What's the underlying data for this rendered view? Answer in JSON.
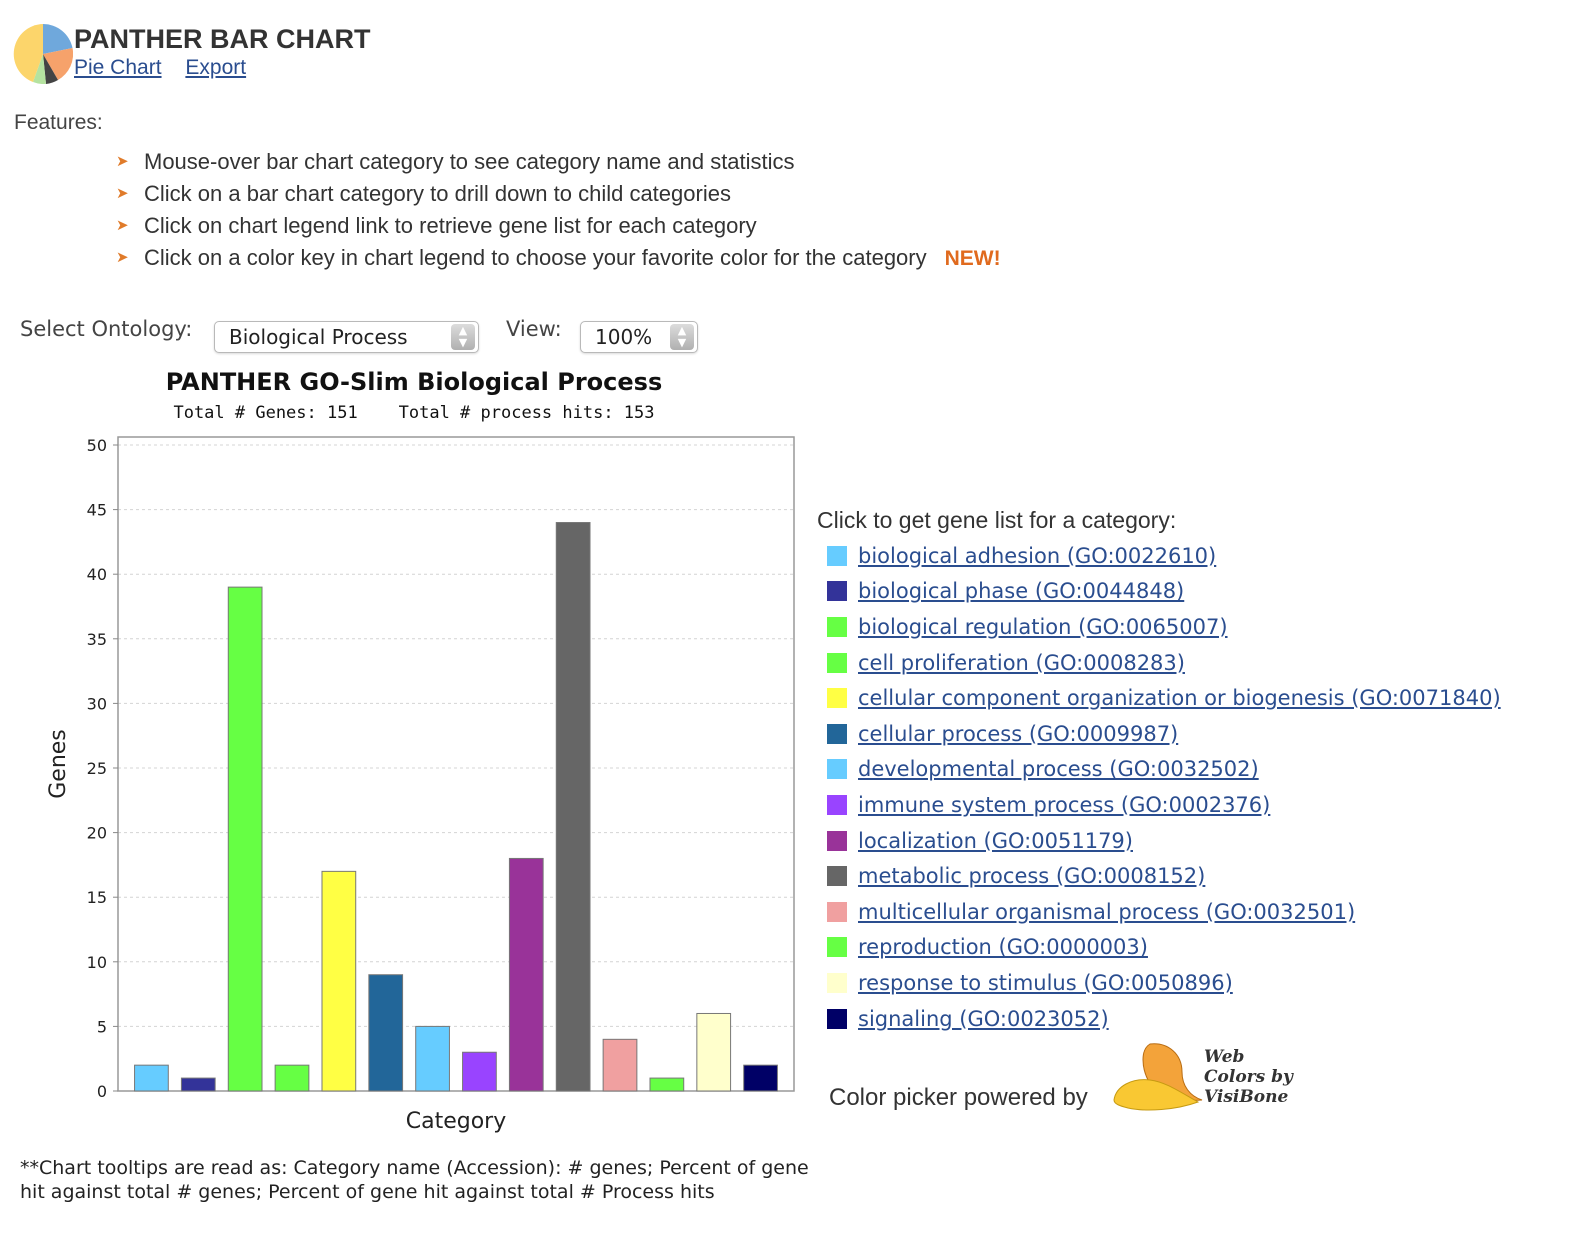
{
  "header": {
    "title": "PANTHER BAR CHART",
    "links": [
      "Pie Chart",
      "Export"
    ]
  },
  "features": {
    "label": "Features:",
    "items": [
      "Mouse-over bar chart category to see category name and statistics",
      "Click on a bar chart category to drill down to child categories",
      "Click on chart legend link to retrieve gene list for each category",
      "Click on a color key in chart legend to choose your favorite color for the category"
    ],
    "new_badge": "NEW!"
  },
  "controls": {
    "ontology_label": "Select Ontology:",
    "ontology_value": "Biological Process",
    "view_label": "View:",
    "view_value": "100%"
  },
  "chart_data": {
    "type": "bar",
    "title": "PANTHER GO-Slim Biological Process",
    "subtitle": "Total # Genes: 151    Total # process hits: 153",
    "xlabel": "Category",
    "ylabel": "Genes",
    "ylim": [
      0,
      50
    ],
    "yticks": [
      0,
      5,
      10,
      15,
      20,
      25,
      30,
      35,
      40,
      45,
      50
    ],
    "grid": true,
    "categories": [
      "biological adhesion (GO:0022610)",
      "biological phase (GO:0044848)",
      "biological regulation (GO:0065007)",
      "cell proliferation (GO:0008283)",
      "cellular component organization or biogenesis (GO:0071840)",
      "cellular process (GO:0009987)",
      "developmental process (GO:0032502)",
      "immune system process (GO:0002376)",
      "localization (GO:0051179)",
      "metabolic process (GO:0008152)",
      "multicellular organismal process (GO:0032501)",
      "reproduction (GO:0000003)",
      "response to stimulus (GO:0050896)",
      "signaling (GO:0023052)"
    ],
    "values": [
      2,
      1,
      39,
      2,
      17,
      9,
      5,
      3,
      18,
      44,
      4,
      1,
      6,
      2
    ],
    "colors": [
      "#66ccff",
      "#333399",
      "#66ff44",
      "#66ff44",
      "#ffff44",
      "#226699",
      "#66ccff",
      "#9944ff",
      "#993399",
      "#666666",
      "#f0a0a0",
      "#66ff44",
      "#ffffcc",
      "#000066"
    ]
  },
  "legend": {
    "header": "Click to get gene list for a category:"
  },
  "color_picker": {
    "text": "Color picker powered by",
    "logo_text": [
      "Web",
      "Colors by",
      "VisiBone"
    ]
  },
  "footnote": "**Chart tooltips are read as: Category name (Accession): # genes; Percent of gene hit against total # genes; Percent of gene hit against total # Process hits"
}
